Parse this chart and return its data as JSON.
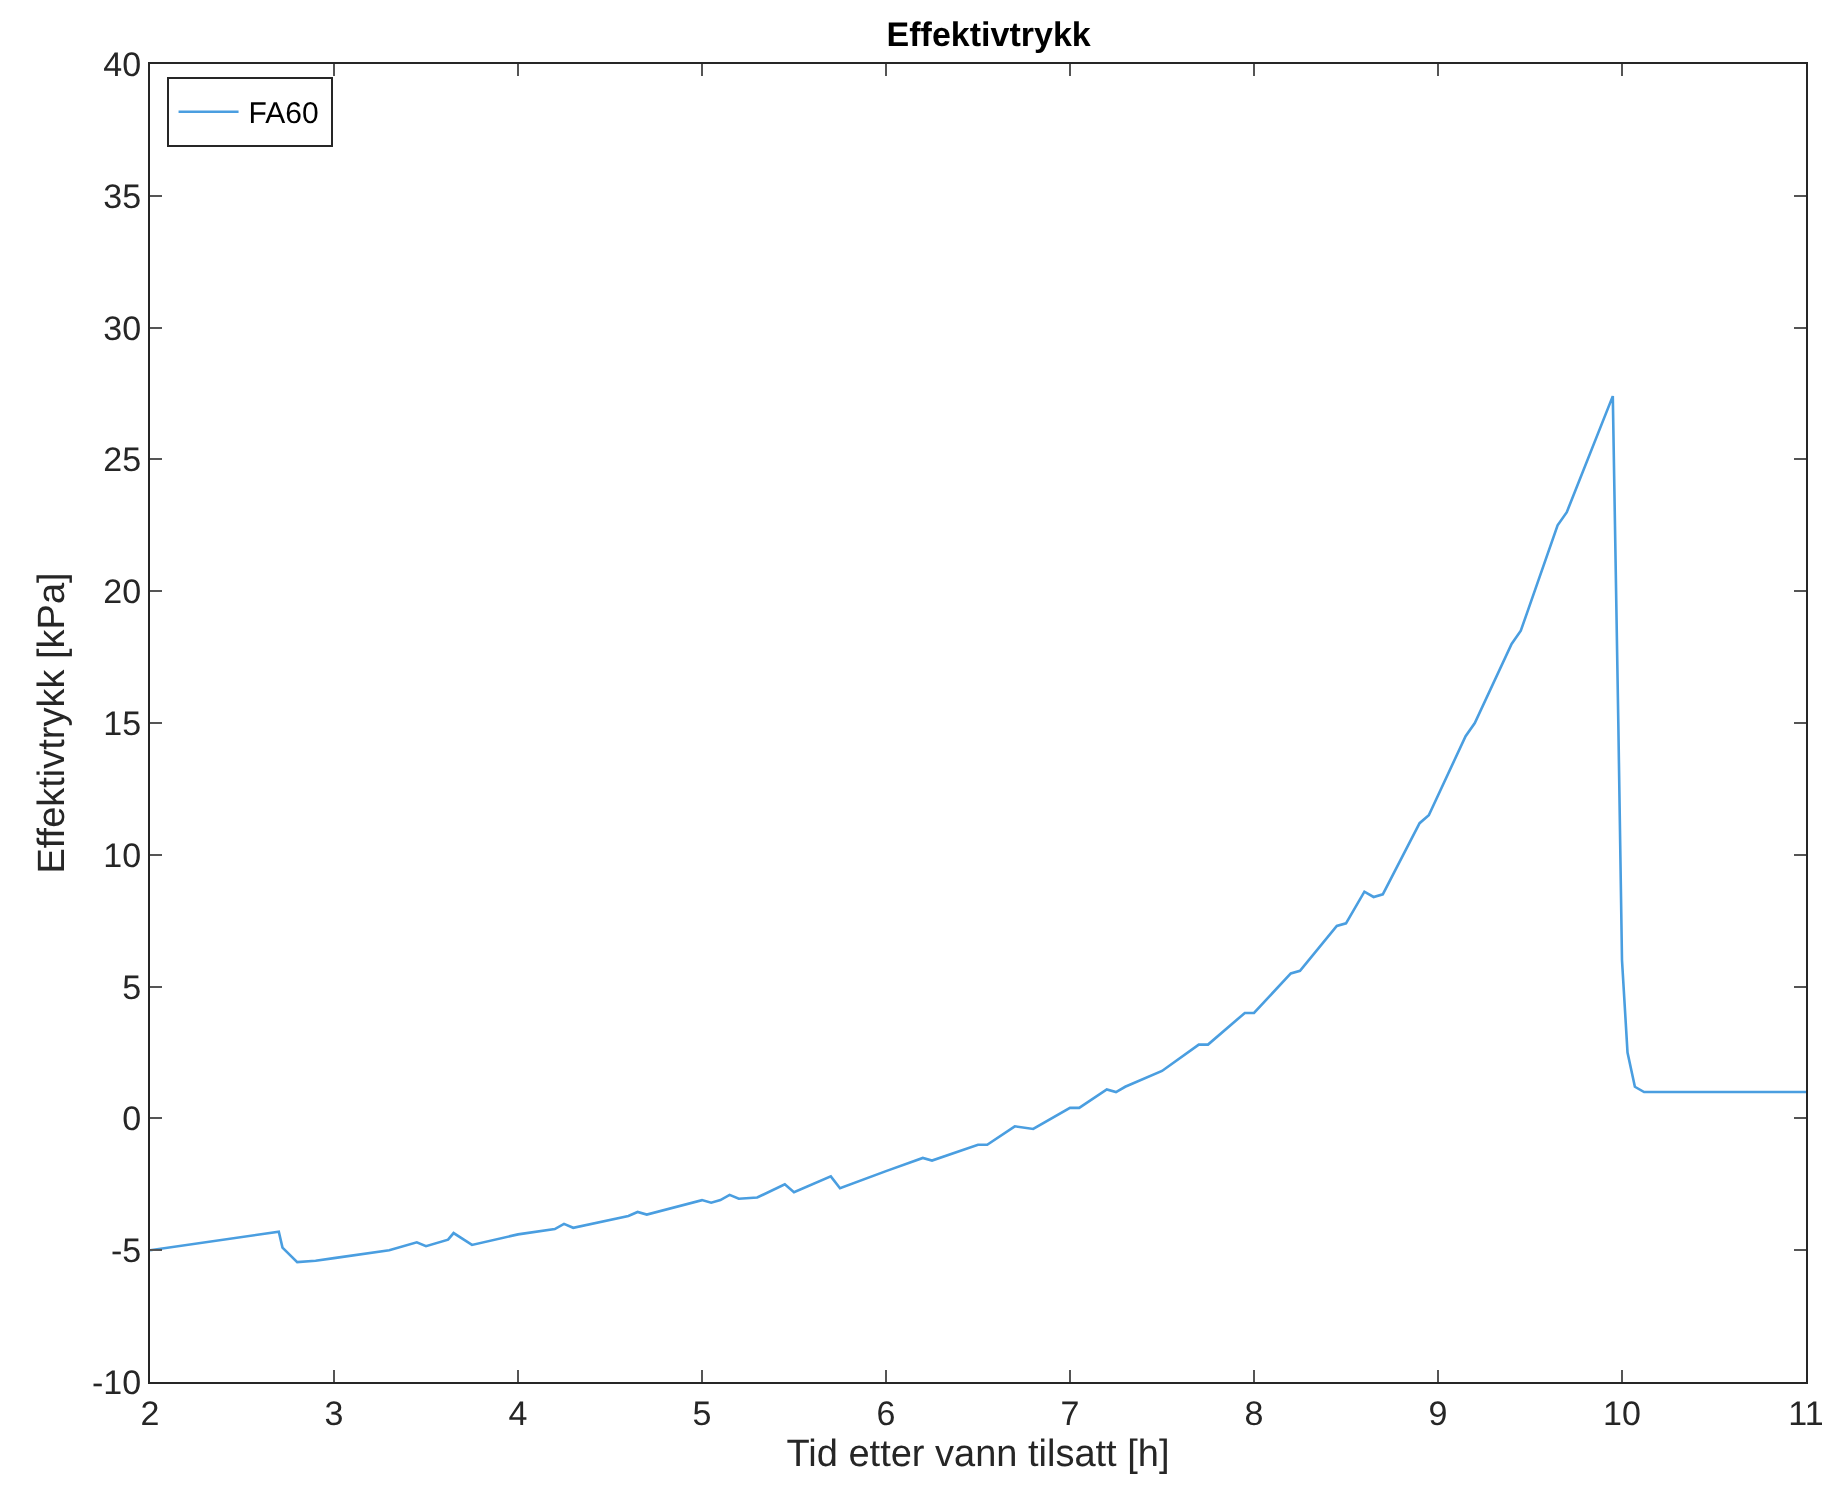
{
  "chart_data": {
    "type": "line",
    "title": "Effektivtrykk",
    "xlabel": "Tid etter vann tilsatt [h]",
    "ylabel": "Effektivtrykk [kPa]",
    "xlim": [
      2,
      11
    ],
    "xticks": [
      2,
      3,
      4,
      5,
      6,
      7,
      8,
      9,
      10,
      11
    ],
    "ylim": [
      -10,
      40
    ],
    "yticks": [
      -10,
      -5,
      0,
      5,
      10,
      15,
      20,
      25,
      30,
      35,
      40
    ],
    "legend": "top left",
    "marker": "none",
    "line_style": "solid",
    "series": [
      {
        "name": "FA60",
        "color": "#4a9ee0",
        "x": [
          2.0,
          2.7,
          2.72,
          2.8,
          2.9,
          3.0,
          3.3,
          3.45,
          3.5,
          3.62,
          3.65,
          3.75,
          4.0,
          4.2,
          4.25,
          4.3,
          4.6,
          4.65,
          4.7,
          5.0,
          5.05,
          5.1,
          5.15,
          5.2,
          5.3,
          5.45,
          5.5,
          5.7,
          5.75,
          6.0,
          6.2,
          6.25,
          6.5,
          6.55,
          6.7,
          6.8,
          7.0,
          7.05,
          7.2,
          7.25,
          7.3,
          7.5,
          7.7,
          7.75,
          7.95,
          8.0,
          8.2,
          8.25,
          8.45,
          8.5,
          8.6,
          8.65,
          8.7,
          8.9,
          8.95,
          9.15,
          9.2,
          9.4,
          9.45,
          9.65,
          9.7,
          9.95,
          9.98,
          10.0,
          10.03,
          10.07,
          10.12,
          11.0
        ],
        "values": [
          -5.0,
          -4.3,
          -4.9,
          -5.45,
          -5.4,
          -5.3,
          -5.0,
          -4.7,
          -4.85,
          -4.6,
          -4.35,
          -4.8,
          -4.4,
          -4.2,
          -4.0,
          -4.15,
          -3.7,
          -3.55,
          -3.65,
          -3.1,
          -3.2,
          -3.1,
          -2.9,
          -3.05,
          -3.0,
          -2.5,
          -2.8,
          -2.2,
          -2.65,
          -2.0,
          -1.5,
          -1.6,
          -1.0,
          -1.0,
          -0.3,
          -0.4,
          0.4,
          0.4,
          1.1,
          1.0,
          1.2,
          1.8,
          2.8,
          2.8,
          4.0,
          4.0,
          5.5,
          5.6,
          7.3,
          7.4,
          8.6,
          8.4,
          8.5,
          11.2,
          11.5,
          14.5,
          15.0,
          18.0,
          18.5,
          22.5,
          23.0,
          27.4,
          15.0,
          6.0,
          2.5,
          1.2,
          1.0,
          1.0
        ]
      }
    ]
  }
}
